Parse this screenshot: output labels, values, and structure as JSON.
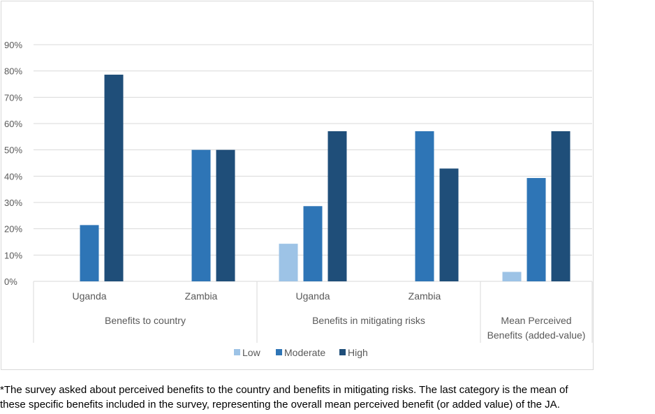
{
  "chart_data": {
    "type": "bar",
    "y_ticks": [
      "0%",
      "10%",
      "20%",
      "30%",
      "40%",
      "50%",
      "60%",
      "70%",
      "80%",
      "90%"
    ],
    "ylim": [
      0,
      90
    ],
    "grid": true,
    "legend_position": "bottom",
    "groups": [
      {
        "label_lines": [
          "Benefits to country"
        ],
        "categories": [
          "Uganda",
          "Zambia"
        ]
      },
      {
        "label_lines": [
          "Benefits in mitigating risks"
        ],
        "categories": [
          "Uganda",
          "Zambia"
        ]
      },
      {
        "label_lines": [
          "Mean Perceived",
          "Benefits (added-value)"
        ],
        "categories": [
          ""
        ]
      }
    ],
    "series": [
      {
        "name": "Low",
        "color": "#9dc3e6",
        "values": [
          0,
          0,
          14.3,
          0,
          3.6
        ]
      },
      {
        "name": "Moderate",
        "color": "#2e75b6",
        "values": [
          21.4,
          50,
          28.6,
          57.1,
          39.3
        ]
      },
      {
        "name": "High",
        "color": "#1f4e79",
        "values": [
          78.6,
          50,
          57.1,
          42.9,
          57.1
        ]
      }
    ]
  },
  "footnote": {
    "line1": "*The survey asked about perceived benefits to the country and benefits in mitigating risks. The last category is the mean of",
    "line2": "these specific benefits included in the survey, representing the overall mean perceived benefit (or added value) of the JA."
  }
}
